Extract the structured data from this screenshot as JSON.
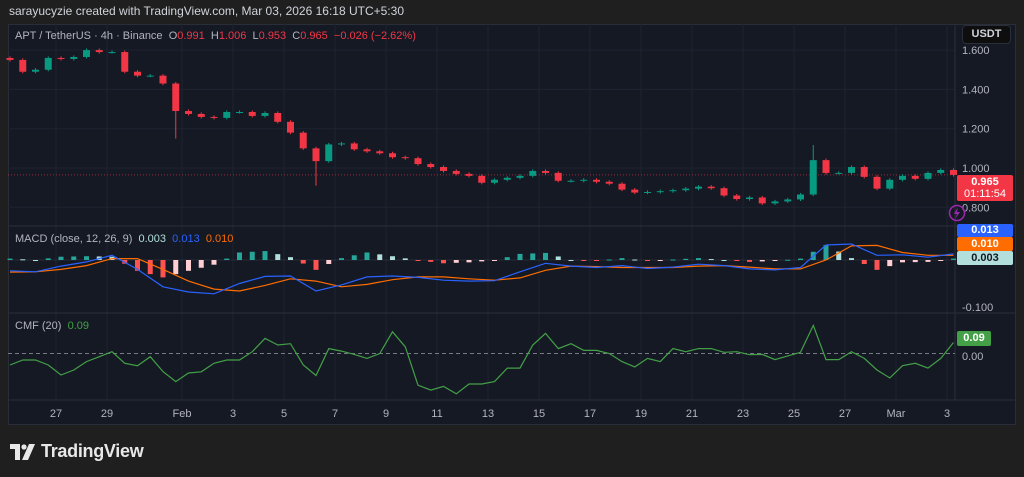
{
  "credit": "sarayucyzie created with TradingView.com, Mar 03, 2026 16:18 UTC+5:30",
  "legend": {
    "symbol": "APT / TetherUS · 4h · Binance",
    "o_label": "O",
    "o": "0.991",
    "h_label": "H",
    "h": "1.006",
    "l_label": "L",
    "l": "0.953",
    "c_label": "C",
    "c": "0.965",
    "change": "−0.026 (−2.62%)"
  },
  "currency_button": "USDT",
  "macd_legend": {
    "title": "MACD (close, 12, 26, 9)",
    "hist": "0.003",
    "macd": "0.013",
    "signal": "0.010"
  },
  "cmf_legend": {
    "title": "CMF (20)",
    "value": "0.09"
  },
  "price_tag": {
    "price": "0.965",
    "countdown": "01:11:54"
  },
  "macd_tags": {
    "macd": "0.013",
    "signal": "0.010",
    "hist": "0.003"
  },
  "cmf_tag": "0.09",
  "footer_logo": "TradingView",
  "colors": {
    "up": "#089981",
    "down": "#f23645",
    "macd": "#2962ff",
    "signal": "#ff6d00",
    "cmf": "#43a047",
    "hist_up_strong": "#26a69a",
    "hist_up_weak": "#b2dfdb",
    "hist_down_strong": "#ff5252",
    "hist_down_weak": "#ffcdd2"
  },
  "chart_data": [
    {
      "type": "candlestick",
      "price_axis": {
        "ticks": [
          "1.600",
          "1.400",
          "1.200",
          "1.000",
          "0.800"
        ],
        "range": [
          0.75,
          1.65
        ]
      },
      "time_axis": [
        "27",
        "29",
        "Feb",
        "3",
        "5",
        "7",
        "9",
        "11",
        "13",
        "15",
        "17",
        "19",
        "21",
        "23",
        "25",
        "27",
        "Mar",
        "3"
      ],
      "close": [
        1.55,
        1.49,
        1.5,
        1.56,
        1.555,
        1.565,
        1.6,
        1.59,
        1.59,
        1.49,
        1.47,
        1.47,
        1.43,
        1.29,
        1.275,
        1.26,
        1.255,
        1.285,
        1.285,
        1.265,
        1.28,
        1.235,
        1.18,
        1.1,
        1.035,
        1.12,
        1.125,
        1.095,
        1.085,
        1.075,
        1.055,
        1.05,
        1.02,
        1.005,
        0.985,
        0.97,
        0.96,
        0.925,
        0.94,
        0.95,
        0.96,
        0.985,
        0.975,
        0.935,
        0.935,
        0.94,
        0.93,
        0.92,
        0.89,
        0.875,
        0.878,
        0.882,
        0.887,
        0.895,
        0.905,
        0.897,
        0.86,
        0.842,
        0.85,
        0.82,
        0.83,
        0.84,
        0.865,
        1.04,
        0.975,
        0.975,
        1.005,
        0.955,
        0.895,
        0.94,
        0.96,
        0.945,
        0.975,
        0.99,
        0.965
      ],
      "notable_wicks": [
        {
          "i": 13,
          "low": 1.15
        },
        {
          "i": 24,
          "low": 0.91
        },
        {
          "i": 63,
          "high": 1.117
        }
      ],
      "last_price": 0.965
    },
    {
      "type": "line",
      "name": "MACD (close, 12, 26, 9)",
      "axis_ticks": [
        "-0.100"
      ],
      "range": [
        -0.11,
        0.075
      ],
      "series": [
        {
          "name": "MACD",
          "values": [
            -0.023,
            -0.025,
            -0.013,
            -0.004,
            0.01,
            -0.02,
            -0.057,
            -0.068,
            -0.072,
            -0.05,
            -0.035,
            -0.034,
            -0.066,
            -0.053,
            -0.036,
            -0.034,
            -0.037,
            -0.043,
            -0.045,
            -0.044,
            -0.025,
            -0.007,
            -0.013,
            -0.016,
            -0.012,
            -0.018,
            -0.015,
            -0.009,
            -0.012,
            -0.019,
            -0.021,
            -0.016,
            0.032,
            0.034,
            0.01,
            0.011,
            0.006,
            0.013
          ]
        },
        {
          "name": "Signal",
          "values": [
            -0.026,
            -0.025,
            -0.02,
            -0.012,
            0.003,
            0.003,
            -0.02,
            -0.045,
            -0.062,
            -0.066,
            -0.054,
            -0.04,
            -0.045,
            -0.057,
            -0.052,
            -0.042,
            -0.036,
            -0.036,
            -0.04,
            -0.043,
            -0.038,
            -0.022,
            -0.013,
            -0.014,
            -0.016,
            -0.016,
            -0.016,
            -0.013,
            -0.012,
            -0.015,
            -0.019,
            -0.019,
            0.0,
            0.03,
            0.031,
            0.016,
            0.01,
            0.01
          ]
        }
      ]
    },
    {
      "type": "line",
      "name": "CMF (20)",
      "axis_ticks": [
        "0.00"
      ],
      "range": [
        -0.42,
        0.38
      ],
      "values": [
        -0.094,
        -0.053,
        -0.053,
        -0.094,
        -0.176,
        -0.135,
        -0.066,
        -0.026,
        0.015,
        -0.08,
        -0.1,
        -0.026,
        -0.148,
        -0.23,
        -0.16,
        -0.15,
        -0.08,
        -0.053,
        -0.053,
        0.015,
        0.124,
        0.07,
        0.08,
        -0.094,
        -0.18,
        0.04,
        0.02,
        -0.007,
        -0.04,
        0.0,
        0.178,
        0.055,
        -0.26,
        -0.3,
        -0.27,
        -0.33,
        -0.25,
        -0.25,
        -0.23,
        -0.12,
        -0.12,
        0.07,
        0.165,
        0.04,
        0.08,
        0.025,
        0.025,
        0.0,
        -0.066,
        -0.11,
        -0.04,
        -0.066,
        0.04,
        0.015,
        0.04,
        0.04,
        0.01,
        0.015,
        -0.01,
        -0.007,
        -0.05,
        -0.02,
        0.01,
        0.23,
        -0.05,
        -0.05,
        0.015,
        -0.04,
        -0.135,
        -0.2,
        -0.1,
        -0.08,
        -0.12,
        -0.04,
        0.09
      ]
    }
  ]
}
